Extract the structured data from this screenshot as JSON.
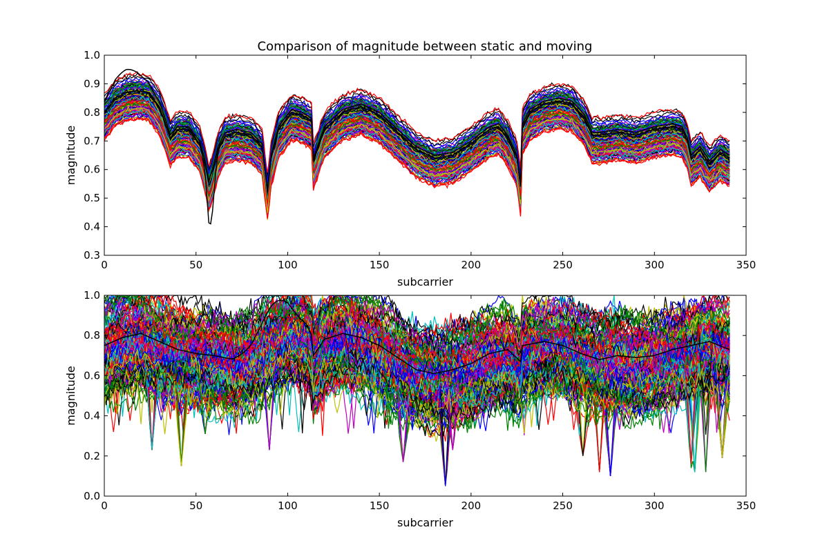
{
  "figure": {
    "title": "Comparison of magnitude between static and moving"
  },
  "colors": [
    "#0000ff",
    "#008000",
    "#ff0000",
    "#00bfbf",
    "#bf00bf",
    "#bfbf00",
    "#000000"
  ],
  "chart_data": [
    {
      "type": "line",
      "title": "Comparison of magnitude between static and moving",
      "xlabel": "subcarrier",
      "ylabel": "magnitude",
      "xlim": [
        0,
        350
      ],
      "ylim": [
        0.3,
        1.0
      ],
      "xticks": [
        "0",
        "50",
        "100",
        "150",
        "200",
        "250",
        "300",
        "350"
      ],
      "yticks": [
        "0.3",
        "0.4",
        "0.5",
        "0.6",
        "0.7",
        "0.8",
        "0.9",
        "1.0"
      ],
      "x_range": [
        0,
        341
      ],
      "num_series_approx": 150,
      "profile": {
        "x": [
          0,
          6,
          12,
          18,
          24,
          30,
          34,
          36,
          40,
          46,
          52,
          55,
          57,
          59,
          62,
          66,
          72,
          80,
          86,
          89,
          91,
          95,
          102,
          108,
          113,
          114,
          120,
          130,
          140,
          150,
          160,
          170,
          180,
          190,
          200,
          210,
          215,
          220,
          225,
          227,
          228,
          232,
          240,
          248,
          255,
          262,
          266,
          270,
          280,
          290,
          300,
          310,
          315,
          318,
          320,
          325,
          330,
          336,
          341
        ],
        "y": [
          0.78,
          0.83,
          0.85,
          0.855,
          0.85,
          0.8,
          0.73,
          0.69,
          0.72,
          0.72,
          0.67,
          0.6,
          0.53,
          0.57,
          0.65,
          0.7,
          0.71,
          0.7,
          0.66,
          0.5,
          0.62,
          0.72,
          0.78,
          0.77,
          0.75,
          0.61,
          0.72,
          0.78,
          0.8,
          0.77,
          0.71,
          0.65,
          0.62,
          0.63,
          0.67,
          0.72,
          0.73,
          0.69,
          0.62,
          0.52,
          0.73,
          0.78,
          0.81,
          0.82,
          0.81,
          0.76,
          0.7,
          0.7,
          0.71,
          0.7,
          0.72,
          0.73,
          0.72,
          0.68,
          0.62,
          0.65,
          0.6,
          0.64,
          0.62
        ]
      },
      "spread_range": [
        0.1,
        0.2
      ],
      "highlights": [
        {
          "color": "#000000",
          "note": "dip near subcarrier 58",
          "x": 58,
          "y": 0.39
        },
        {
          "color": "#000000",
          "peak_x": 12,
          "peak_y": 0.92
        }
      ]
    },
    {
      "type": "line",
      "title": "",
      "xlabel": "subcarrier",
      "ylabel": "magnitude",
      "xlim": [
        0,
        350
      ],
      "ylim": [
        0.0,
        1.0
      ],
      "xticks": [
        "0",
        "50",
        "100",
        "150",
        "200",
        "250",
        "300",
        "350"
      ],
      "yticks": [
        "0.0",
        "0.2",
        "0.4",
        "0.6",
        "0.8",
        "1.0"
      ],
      "x_range": [
        0,
        341
      ],
      "num_series_approx": 150,
      "profile": {
        "x": [
          0,
          10,
          20,
          30,
          40,
          50,
          60,
          70,
          80,
          90,
          100,
          110,
          113,
          114,
          120,
          130,
          140,
          150,
          160,
          170,
          180,
          190,
          200,
          210,
          220,
          227,
          228,
          240,
          250,
          260,
          270,
          280,
          290,
          300,
          310,
          320,
          330,
          341
        ],
        "y": [
          0.72,
          0.76,
          0.78,
          0.74,
          0.7,
          0.68,
          0.67,
          0.65,
          0.68,
          0.75,
          0.8,
          0.8,
          0.76,
          0.66,
          0.75,
          0.78,
          0.76,
          0.72,
          0.66,
          0.6,
          0.58,
          0.6,
          0.63,
          0.68,
          0.7,
          0.64,
          0.72,
          0.74,
          0.72,
          0.68,
          0.65,
          0.67,
          0.66,
          0.67,
          0.7,
          0.72,
          0.74,
          0.7
        ]
      },
      "spread_range": [
        0.25,
        0.45
      ],
      "deep_dips": [
        {
          "x": 26,
          "y": 0.23
        },
        {
          "x": 42,
          "y": 0.15
        },
        {
          "x": 55,
          "y": 0.31
        },
        {
          "x": 90,
          "y": 0.23
        },
        {
          "x": 163,
          "y": 0.17
        },
        {
          "x": 186,
          "y": 0.05
        },
        {
          "x": 190,
          "y": 0.23
        },
        {
          "x": 261,
          "y": 0.2
        },
        {
          "x": 270,
          "y": 0.12
        },
        {
          "x": 276,
          "y": 0.1
        },
        {
          "x": 320,
          "y": 0.16
        },
        {
          "x": 322,
          "y": 0.12
        },
        {
          "x": 328,
          "y": 0.12
        },
        {
          "x": 337,
          "y": 0.19
        }
      ],
      "highlights": [
        {
          "color": "#000000",
          "peak_x": 94,
          "peak_y": 0.94
        }
      ]
    }
  ]
}
